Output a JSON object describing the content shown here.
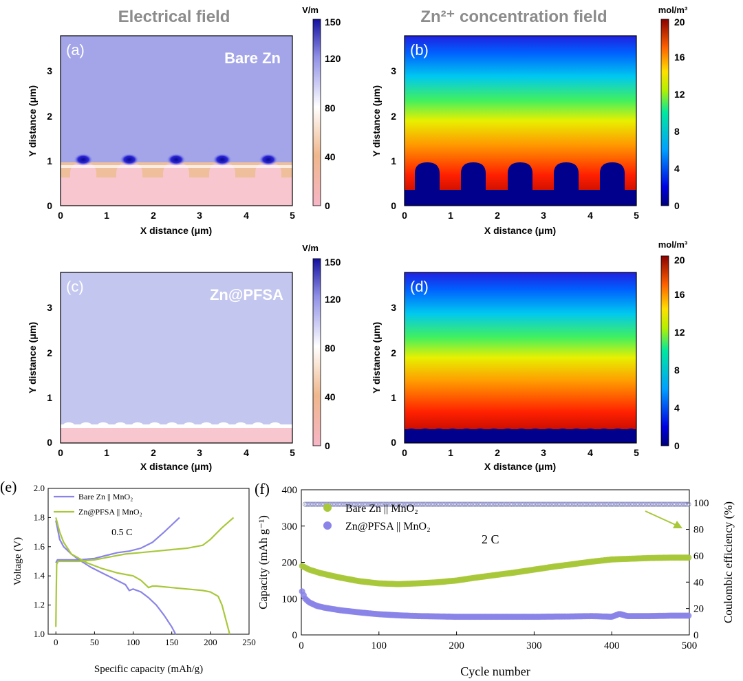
{
  "panels": {
    "a": {
      "column_title": "Electrical field",
      "letter": "(a)",
      "label": "Bare Zn",
      "xlabel": "X distance (μm)",
      "ylabel": "Y distance (μm)",
      "xticks": [
        "0",
        "1",
        "2",
        "3",
        "4",
        "5"
      ],
      "yticks": [
        "0",
        "1",
        "2",
        "3"
      ],
      "colorbar_unit": "V/m",
      "colorbar_ticks": [
        "0",
        "40",
        "80",
        "120",
        "150"
      ],
      "colors": {
        "field": "#a3a5e8",
        "hot": "#1a14c8",
        "low": "#f7c6cf",
        "mid": "#efb78c"
      }
    },
    "b": {
      "column_title": "Zn²⁺ concentration field",
      "letter": "(b)",
      "xlabel": "X distance (μm)",
      "ylabel": "Y distance (μm)",
      "xticks": [
        "0",
        "1",
        "2",
        "3",
        "4",
        "5"
      ],
      "yticks": [
        "0",
        "1",
        "2",
        "3"
      ],
      "colorbar_unit": "mol/m³",
      "colorbar_ticks": [
        "0",
        "4",
        "8",
        "12",
        "16",
        "20"
      ]
    },
    "c": {
      "letter": "(c)",
      "label": "Zn@PFSA",
      "xlabel": "X distance (μm)",
      "ylabel": "Y distance (μm)",
      "xticks": [
        "0",
        "1",
        "2",
        "3",
        "4",
        "5"
      ],
      "yticks": [
        "0",
        "1",
        "2",
        "3"
      ],
      "colorbar_unit": "V/m",
      "colorbar_ticks": [
        "0",
        "40",
        "80",
        "120",
        "150"
      ],
      "colors": {
        "field": "#c3c6ee",
        "low": "#f7c6cf"
      }
    },
    "d": {
      "letter": "(d)",
      "xlabel": "X distance (μm)",
      "ylabel": "Y distance (μm)",
      "xticks": [
        "0",
        "1",
        "2",
        "3",
        "4",
        "5"
      ],
      "yticks": [
        "0",
        "1",
        "2",
        "3"
      ],
      "colorbar_unit": "mol/m³",
      "colorbar_ticks": [
        "0",
        "4",
        "8",
        "12",
        "16",
        "20"
      ]
    },
    "e": {
      "letter": "(e)"
    },
    "f": {
      "letter": "(f)"
    }
  },
  "chart_data": [
    {
      "type": "line",
      "panel": "e",
      "xlabel": "Specific capacity (mAh/g)",
      "ylabel": "Voltage (V)",
      "xlim": [
        -10,
        250
      ],
      "ylim": [
        1.0,
        2.0
      ],
      "xticks": [
        0,
        50,
        100,
        150,
        200,
        250
      ],
      "yticks": [
        1.0,
        1.2,
        1.4,
        1.6,
        1.8,
        2.0
      ],
      "annotation": "0.5 C",
      "legend_position": "top-left",
      "series": [
        {
          "name": "Bare Zn || MnO₂",
          "color": "#8a84e8",
          "segments": [
            {
              "x": [
                0,
                2,
                5,
                15,
                30,
                50,
                65,
                80,
                95,
                110,
                125,
                140,
                150,
                160
              ],
              "y": [
                1.49,
                1.51,
                1.51,
                1.51,
                1.51,
                1.52,
                1.54,
                1.56,
                1.57,
                1.59,
                1.63,
                1.7,
                1.75,
                1.8
              ]
            },
            {
              "x": [
                0,
                5,
                10,
                20,
                30,
                45,
                60,
                75,
                90,
                95,
                100,
                110,
                120,
                130,
                140,
                150,
                155
              ],
              "y": [
                1.78,
                1.65,
                1.6,
                1.55,
                1.51,
                1.46,
                1.42,
                1.38,
                1.34,
                1.3,
                1.31,
                1.29,
                1.25,
                1.2,
                1.13,
                1.05,
                1.0
              ]
            }
          ]
        },
        {
          "name": "Zn@PFSA || MnO₂",
          "color": "#a8c83a",
          "segments": [
            {
              "x": [
                0,
                0.5,
                1,
                3,
                10,
                30,
                50,
                70,
                90,
                110,
                130,
                150,
                170,
                190,
                200,
                215,
                230
              ],
              "y": [
                1.05,
                1.3,
                1.48,
                1.5,
                1.5,
                1.5,
                1.51,
                1.53,
                1.55,
                1.56,
                1.57,
                1.58,
                1.59,
                1.61,
                1.65,
                1.73,
                1.8
              ]
            },
            {
              "x": [
                0,
                5,
                10,
                20,
                40,
                60,
                80,
                100,
                110,
                120,
                125,
                130,
                150,
                170,
                190,
                200,
                210,
                215,
                220,
                225
              ],
              "y": [
                1.8,
                1.7,
                1.63,
                1.55,
                1.49,
                1.45,
                1.42,
                1.4,
                1.37,
                1.32,
                1.33,
                1.33,
                1.32,
                1.31,
                1.3,
                1.29,
                1.26,
                1.2,
                1.1,
                1.0
              ]
            }
          ]
        }
      ]
    },
    {
      "type": "scatter",
      "panel": "f",
      "xlabel": "Cycle number",
      "ylabel": "Capacity (mAh g⁻¹)",
      "y2label": "Coulombic efficiency (%)",
      "xlim": [
        0,
        500
      ],
      "ylim": [
        0,
        400
      ],
      "y2lim": [
        0,
        110
      ],
      "xticks": [
        0,
        100,
        200,
        300,
        400,
        500
      ],
      "yticks": [
        0,
        100,
        200,
        300,
        400
      ],
      "y2ticks": [
        0,
        20,
        40,
        60,
        80,
        100
      ],
      "annotation": "2 C",
      "legend_position": "top-left",
      "series": [
        {
          "name": "Bare Zn || MnO₂",
          "color": "#a8c83a",
          "axis": "left",
          "x": [
            1,
            10,
            25,
            50,
            75,
            100,
            125,
            150,
            175,
            200,
            225,
            250,
            275,
            300,
            325,
            350,
            375,
            400,
            425,
            450,
            475,
            500
          ],
          "y": [
            190,
            180,
            170,
            158,
            148,
            142,
            140,
            142,
            145,
            150,
            158,
            165,
            172,
            180,
            188,
            195,
            202,
            208,
            210,
            212,
            213,
            213
          ]
        },
        {
          "name": "Zn@PFSA || MnO₂",
          "color": "#8a84e8",
          "axis": "left",
          "x": [
            1,
            5,
            10,
            20,
            30,
            50,
            75,
            100,
            125,
            150,
            200,
            250,
            300,
            350,
            375,
            400,
            410,
            420,
            450,
            475,
            500
          ],
          "y": [
            120,
            100,
            90,
            80,
            75,
            68,
            62,
            57,
            54,
            52,
            50,
            50,
            50,
            51,
            52,
            50,
            58,
            52,
            52,
            53,
            53
          ]
        },
        {
          "axis": "right",
          "color": "#a8c83a",
          "x": [
            5,
            50,
            100,
            150,
            200,
            250,
            300,
            350,
            400,
            450,
            500
          ],
          "y": [
            99,
            99,
            99,
            99,
            99,
            99,
            99,
            99,
            99,
            99,
            99
          ]
        },
        {
          "axis": "right",
          "color": "#8a84e8",
          "x": [
            5,
            50,
            100,
            150,
            200,
            250,
            300,
            350,
            400,
            450,
            500
          ],
          "y": [
            99,
            99,
            99,
            99,
            99,
            99,
            99,
            99,
            99,
            99,
            99
          ]
        }
      ]
    }
  ]
}
